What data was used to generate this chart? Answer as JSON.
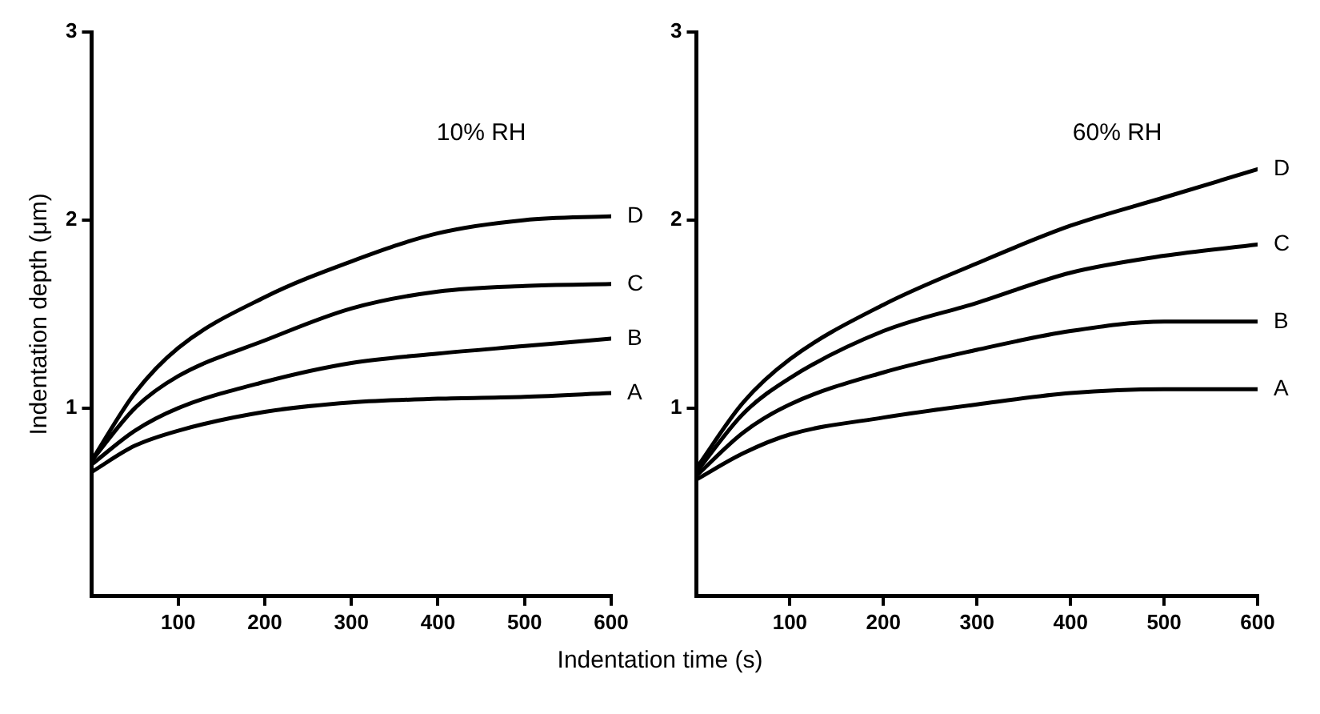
{
  "chart_data": [
    {
      "type": "line",
      "ylabel": "Indentation depth (μm)",
      "xlabel": "Indentation time (s)",
      "annotations": [
        "10% RH"
      ],
      "x": [
        0,
        50,
        100,
        200,
        300,
        400,
        500,
        600
      ],
      "xlim": [
        0,
        600
      ],
      "xticks": [
        100,
        200,
        300,
        400,
        500,
        600
      ],
      "ylim": [
        0,
        3
      ],
      "yticks": [
        1,
        2,
        3
      ],
      "grid": false,
      "legend": false,
      "marker": "none",
      "line_style": "solid",
      "series": [
        {
          "name": "D",
          "color": "#000000",
          "values": [
            0.72,
            1.08,
            1.32,
            1.59,
            1.78,
            1.93,
            2.0,
            2.02
          ]
        },
        {
          "name": "C",
          "color": "#000000",
          "values": [
            0.72,
            1.0,
            1.17,
            1.36,
            1.53,
            1.62,
            1.65,
            1.66
          ]
        },
        {
          "name": "B",
          "color": "#000000",
          "values": [
            0.7,
            0.88,
            1.0,
            1.14,
            1.24,
            1.29,
            1.33,
            1.37
          ]
        },
        {
          "name": "A",
          "color": "#000000",
          "values": [
            0.66,
            0.8,
            0.88,
            0.98,
            1.03,
            1.05,
            1.06,
            1.08
          ]
        }
      ]
    },
    {
      "type": "line",
      "annotations": [
        "60% RH"
      ],
      "x": [
        0,
        50,
        100,
        200,
        300,
        400,
        500,
        600
      ],
      "xlim": [
        0,
        600
      ],
      "xticks": [
        100,
        200,
        300,
        400,
        500,
        600
      ],
      "ylim": [
        0,
        3
      ],
      "yticks": [
        1,
        2,
        3
      ],
      "grid": false,
      "legend": false,
      "marker": "none",
      "line_style": "solid",
      "series": [
        {
          "name": "D",
          "color": "#000000",
          "values": [
            0.68,
            1.03,
            1.26,
            1.55,
            1.77,
            1.97,
            2.12,
            2.27
          ]
        },
        {
          "name": "C",
          "color": "#000000",
          "values": [
            0.66,
            0.97,
            1.16,
            1.41,
            1.56,
            1.72,
            1.81,
            1.87
          ]
        },
        {
          "name": "B",
          "color": "#000000",
          "values": [
            0.64,
            0.87,
            1.02,
            1.19,
            1.31,
            1.41,
            1.46,
            1.46
          ]
        },
        {
          "name": "A",
          "color": "#000000",
          "values": [
            0.62,
            0.76,
            0.86,
            0.95,
            1.02,
            1.08,
            1.1,
            1.1
          ]
        }
      ]
    }
  ]
}
